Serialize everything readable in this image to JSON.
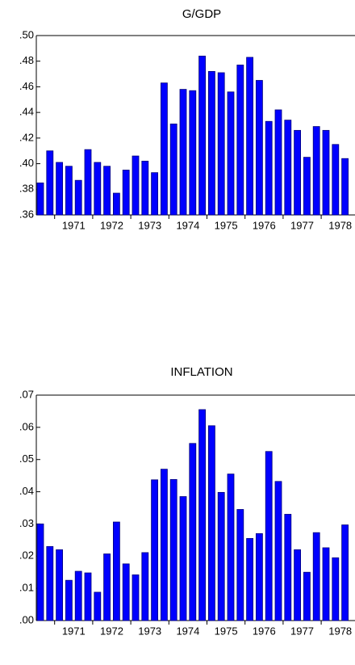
{
  "chart_data": [
    {
      "type": "bar",
      "title": "G/GDP",
      "color": "#0000ff",
      "categories": [
        null,
        null,
        "1971",
        null,
        null,
        null,
        "1972",
        null,
        null,
        null,
        "1973",
        null,
        null,
        null,
        "1974",
        null,
        null,
        null,
        "1975",
        null,
        null,
        null,
        "1976",
        null,
        null,
        null,
        "1977",
        null,
        null,
        null,
        "1978",
        null,
        null
      ],
      "values": [
        0.385,
        0.41,
        0.401,
        0.398,
        0.387,
        0.411,
        0.401,
        0.398,
        0.377,
        0.395,
        0.406,
        0.402,
        0.393,
        0.463,
        0.431,
        0.458,
        0.457,
        0.484,
        0.472,
        0.471,
        0.456,
        0.477,
        0.483,
        0.465,
        0.433,
        0.442,
        0.434,
        0.426,
        0.405,
        0.429,
        0.426,
        0.415,
        0.404
      ],
      "ylim": [
        0.36,
        0.5
      ],
      "yticks": [
        {
          "value": 0.36,
          "label": ".36"
        },
        {
          "value": 0.38,
          "label": ".38"
        },
        {
          "value": 0.4,
          "label": ".40"
        },
        {
          "value": 0.42,
          "label": ".42"
        },
        {
          "value": 0.44,
          "label": ".44"
        },
        {
          "value": 0.46,
          "label": ".46"
        },
        {
          "value": 0.48,
          "label": ".48"
        },
        {
          "value": 0.5,
          "label": ".50"
        }
      ]
    },
    {
      "type": "bar",
      "title": "INFLATION",
      "color": "#0000ff",
      "categories": [
        null,
        null,
        "1971",
        null,
        null,
        null,
        "1972",
        null,
        null,
        null,
        "1973",
        null,
        null,
        null,
        "1974",
        null,
        null,
        null,
        "1975",
        null,
        null,
        null,
        "1976",
        null,
        null,
        null,
        "1977",
        null,
        null,
        null,
        "1978",
        null,
        null
      ],
      "values": [
        0.03,
        0.023,
        0.022,
        0.0125,
        0.0153,
        0.0148,
        0.0088,
        0.0207,
        0.0306,
        0.0176,
        0.0142,
        0.0211,
        0.0437,
        0.047,
        0.0438,
        0.0385,
        0.055,
        0.0655,
        0.0605,
        0.0398,
        0.0455,
        0.0345,
        0.0255,
        0.027,
        0.0525,
        0.0432,
        0.033,
        0.022,
        0.015,
        0.0273,
        0.0226,
        0.0195,
        0.0297
      ],
      "ylim": [
        0.0,
        0.07
      ],
      "yticks": [
        {
          "value": 0.0,
          "label": ".00"
        },
        {
          "value": 0.01,
          "label": ".01"
        },
        {
          "value": 0.02,
          "label": ".02"
        },
        {
          "value": 0.03,
          "label": ".03"
        },
        {
          "value": 0.04,
          "label": ".04"
        },
        {
          "value": 0.05,
          "label": ".05"
        },
        {
          "value": 0.06,
          "label": ".06"
        },
        {
          "value": 0.07,
          "label": ".07"
        }
      ]
    }
  ]
}
